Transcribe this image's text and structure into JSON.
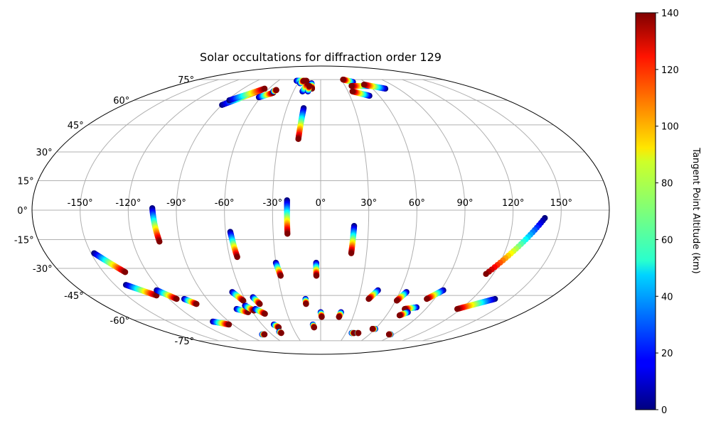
{
  "chart_data": {
    "type": "scatter",
    "projection": "mollweide",
    "title": "Solar occultations for diffraction order 129",
    "colorbar": {
      "label": "Tangent Point Altitude (km)",
      "colormap": "jet",
      "range": [
        0,
        140
      ],
      "ticks": [
        "0",
        "20",
        "40",
        "60",
        "80",
        "100",
        "120",
        "140"
      ]
    },
    "grid": true,
    "x_ticks": [
      "-150°",
      "-120°",
      "-90°",
      "-60°",
      "-30°",
      "0°",
      "30°",
      "60°",
      "90°",
      "120°",
      "150°"
    ],
    "y_ticks": [
      "75°",
      "60°",
      "45°",
      "30°",
      "15°",
      "0°",
      "-15°",
      "-30°",
      "-45°",
      "-60°",
      "-75°"
    ],
    "x_tick_values": [
      -150,
      -120,
      -90,
      -60,
      -30,
      0,
      30,
      60,
      90,
      120,
      150
    ],
    "y_tick_values": [
      75,
      60,
      45,
      30,
      15,
      0,
      -15,
      -30,
      -45,
      -60,
      -75
    ],
    "occultations": [
      {
        "start": [
          -105,
          1
        ],
        "end": [
          -103,
          -16
        ]
      },
      {
        "start": [
          -21,
          5
        ],
        "end": [
          -21,
          -12
        ]
      },
      {
        "start": [
          21,
          -8
        ],
        "end": [
          20,
          -22
        ]
      },
      {
        "start": [
          -57,
          -11
        ],
        "end": [
          -55,
          -24
        ]
      },
      {
        "start": [
          140,
          -4
        ],
        "end": [
          115,
          -33
        ]
      },
      {
        "start": [
          -148,
          -22
        ],
        "end": [
          -135,
          -32
        ]
      },
      {
        "start": [
          -30,
          -27
        ],
        "end": [
          -28,
          -34
        ]
      },
      {
        "start": [
          -3,
          -27
        ],
        "end": [
          -3,
          -34
        ]
      },
      {
        "start": [
          -142,
          -39
        ],
        "end": [
          -127,
          -45
        ]
      },
      {
        "start": [
          -123,
          -42
        ],
        "end": [
          -114,
          -47
        ]
      },
      {
        "start": [
          -108,
          -47
        ],
        "end": [
          -102,
          -50
        ]
      },
      {
        "start": [
          -67,
          -43
        ],
        "end": [
          -62,
          -48
        ]
      },
      {
        "start": [
          -53,
          -46
        ],
        "end": [
          -50,
          -50
        ]
      },
      {
        "start": [
          -12,
          -47
        ],
        "end": [
          -12,
          -50
        ]
      },
      {
        "start": [
          43,
          -42
        ],
        "end": [
          38,
          -47
        ]
      },
      {
        "start": [
          65,
          -43
        ],
        "end": [
          61,
          -48
        ]
      },
      {
        "start": [
          92,
          -42
        ],
        "end": [
          84,
          -47
        ]
      },
      {
        "start": [
          138,
          -47
        ],
        "end": [
          117,
          -53
        ]
      },
      {
        "start": [
          81,
          -52
        ],
        "end": [
          72,
          -53
        ]
      },
      {
        "start": [
          -72,
          -53
        ],
        "end": [
          -64,
          -55
        ]
      },
      {
        "start": [
          -63,
          -51
        ],
        "end": [
          -58,
          -54
        ]
      },
      {
        "start": [
          -56,
          -53
        ],
        "end": [
          -50,
          -56
        ]
      },
      {
        "start": [
          77,
          -55
        ],
        "end": [
          72,
          -57
        ]
      },
      {
        "start": [
          -106,
          -61
        ],
        "end": [
          -94,
          -63
        ]
      },
      {
        "start": [
          0,
          -55
        ],
        "end": [
          1,
          -58
        ]
      },
      {
        "start": [
          18,
          -55
        ],
        "end": [
          17,
          -58
        ]
      },
      {
        "start": [
          -8,
          -63
        ],
        "end": [
          -7,
          -65
        ]
      },
      {
        "start": [
          -48,
          -63
        ],
        "end": [
          -45,
          -65
        ]
      },
      {
        "start": [
          -48,
          -68
        ],
        "end": [
          -47,
          -69
        ]
      },
      {
        "start": [
          -72,
          -70
        ],
        "end": [
          -69,
          -70
        ]
      },
      {
        "start": [
          37,
          -69
        ],
        "end": [
          40,
          -69
        ]
      },
      {
        "start": [
          44,
          -69
        ],
        "end": [
          45,
          -69
        ]
      },
      {
        "start": [
          60,
          -66
        ],
        "end": [
          57,
          -66
        ]
      },
      {
        "start": [
          86,
          -70
        ],
        "end": [
          84,
          -70
        ]
      },
      {
        "start": [
          -15,
          55
        ],
        "end": [
          -16,
          37
        ]
      },
      {
        "start": [
          -20,
          66
        ],
        "end": [
          -17,
          72
        ]
      },
      {
        "start": [
          -12,
          72
        ],
        "end": [
          -10,
          68
        ]
      },
      {
        "start": [
          -14,
          66
        ],
        "end": [
          -14,
          70
        ]
      },
      {
        "start": [
          -90,
          57
        ],
        "end": [
          -67,
          67
        ]
      },
      {
        "start": [
          -88,
          60
        ],
        "end": [
          -65,
          68
        ]
      },
      {
        "start": [
          -62,
          62
        ],
        "end": [
          -51,
          65
        ]
      },
      {
        "start": [
          -52,
          66
        ],
        "end": [
          -50,
          67
        ]
      },
      {
        "start": [
          -34,
          74
        ],
        "end": [
          -20,
          74
        ]
      },
      {
        "start": [
          -27,
          72
        ],
        "end": [
          -24,
          74
        ]
      },
      {
        "start": [
          44,
          73
        ],
        "end": [
          33,
          75
        ]
      },
      {
        "start": [
          60,
          70
        ],
        "end": [
          38,
          70
        ]
      },
      {
        "start": [
          75,
          68
        ],
        "end": [
          55,
          71
        ]
      },
      {
        "start": [
          50,
          63
        ],
        "end": [
          35,
          66
        ]
      }
    ]
  }
}
